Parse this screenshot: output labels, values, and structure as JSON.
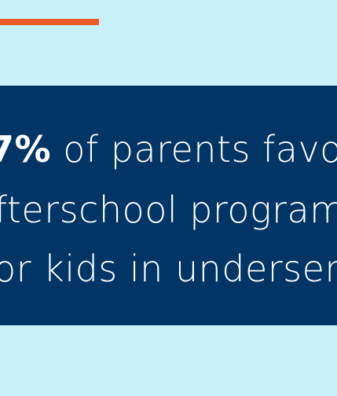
{
  "colors": {
    "background": "#c9f1fa",
    "accent": "#ef5a2a",
    "panel": "#003566",
    "text": "#ffffff"
  },
  "statement": {
    "stat": "7%",
    "line1_rest": " of parents favo",
    "line2": "fterschool program",
    "line3": "or kids in underserv"
  }
}
